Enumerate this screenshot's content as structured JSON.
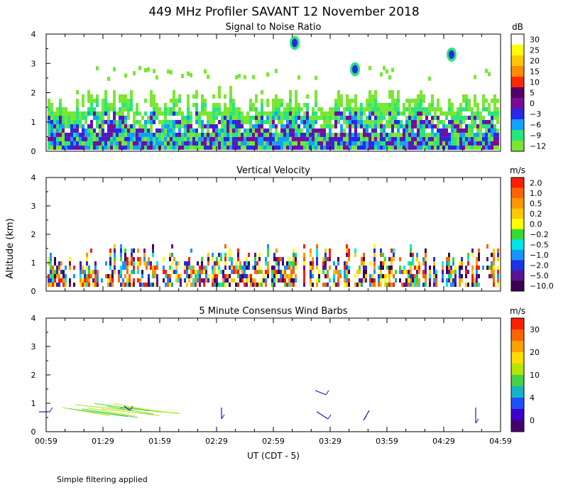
{
  "title": "449 MHz Profiler SAVANT 12 November 2018",
  "ylabel": "Altitude (km)",
  "xlabel": "UT  (CDT - 5)",
  "footnote": "Simple filtering applied",
  "chart_data": [
    {
      "type": "heatmap",
      "title": "Signal to Noise Ratio",
      "units": "dB",
      "ylim": [
        0,
        4
      ],
      "yticks": [
        "0",
        "1",
        "2",
        "3",
        "4"
      ],
      "colorbar": {
        "labels": [
          "30",
          "25",
          "20",
          "15",
          "10",
          "5",
          "0",
          "−3",
          "−6",
          "−9",
          "−12"
        ],
        "colors": [
          "#ffffff",
          "#ffff00",
          "#ffc800",
          "#ff8c00",
          "#ff2800",
          "#550066",
          "#7a0a9a",
          "#2828e6",
          "#14a0ff",
          "#28e67a",
          "#7ae632"
        ]
      }
    },
    {
      "type": "heatmap",
      "title": "Vertical Velocity",
      "units": "m/s",
      "ylim": [
        0,
        4
      ],
      "yticks": [
        "0",
        "1",
        "2",
        "3",
        "4"
      ],
      "colorbar": {
        "labels": [
          "2.0",
          "1.0",
          "0.5",
          "0.2",
          "0.0",
          "−0.2",
          "−0.5",
          "−1.0",
          "−2.0",
          "−5.0",
          "−10.0"
        ],
        "colors": [
          "#ff1e00",
          "#ff6400",
          "#ff9600",
          "#ffc800",
          "#ffff00",
          "#32dc32",
          "#00e6e6",
          "#1496ff",
          "#1e32e6",
          "#5a1496",
          "#3c0050"
        ]
      }
    },
    {
      "type": "scatter",
      "title": "5 Minute Consensus Wind Barbs",
      "units": "m/s",
      "ylim": [
        0,
        4
      ],
      "yticks": [
        "0",
        "1",
        "2",
        "3",
        "4"
      ],
      "colorbar": {
        "labels": [
          "30",
          "20",
          "10",
          "4",
          "0"
        ],
        "colors": [
          "#ff1e00",
          "#ff6400",
          "#ffa000",
          "#ffdc00",
          "#b4e600",
          "#46d246",
          "#14b4c8",
          "#1e50ff",
          "#3c00c8",
          "#46006e"
        ]
      }
    }
  ],
  "xticks": [
    "00:59",
    "01:29",
    "01:59",
    "02:29",
    "02:59",
    "03:29",
    "03:59",
    "04:29",
    "04:59"
  ]
}
